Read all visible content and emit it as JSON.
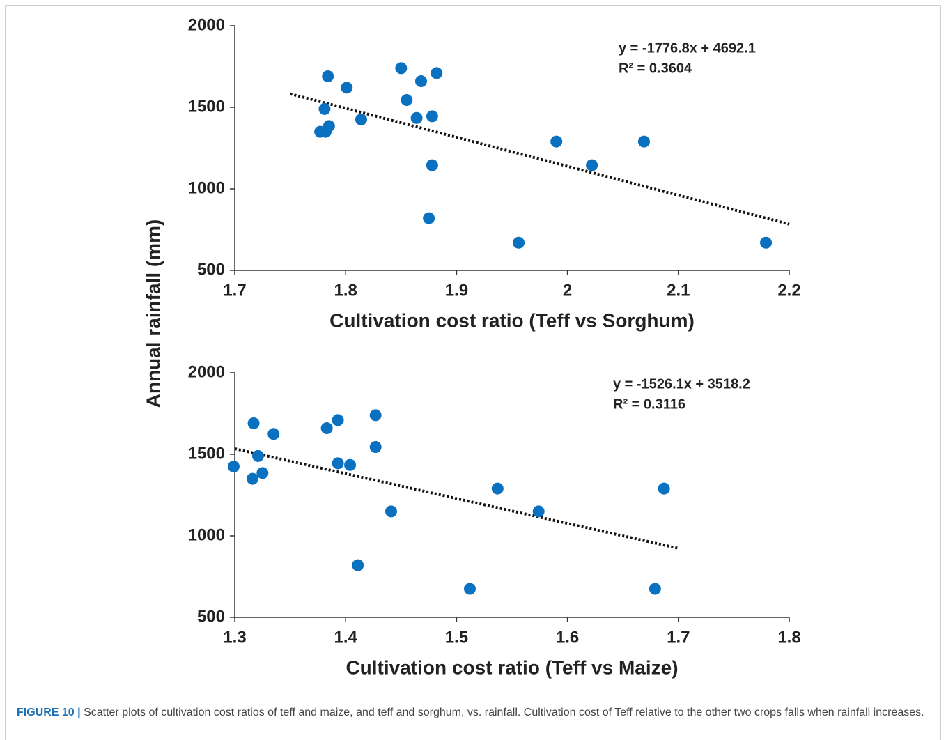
{
  "chart_data": [
    {
      "type": "scatter",
      "xlabel": "Cultivation cost ratio (Teff vs Sorghum)",
      "ylabel": "Annual rainfall (mm)",
      "series": [
        {
          "color": "#0a70c0",
          "x": [
            1.784,
            1.801,
            1.781,
            1.785,
            1.777,
            1.782,
            1.814,
            1.85,
            1.868,
            1.882,
            1.855,
            1.864,
            1.878,
            1.878,
            1.875,
            1.956,
            1.99,
            2.022,
            2.069,
            2.179
          ],
          "values": [
            1690,
            1620,
            1490,
            1385,
            1350,
            1350,
            1425,
            1740,
            1660,
            1710,
            1545,
            1435,
            1445,
            1145,
            820,
            670,
            1290,
            1145,
            1290,
            670
          ]
        }
      ],
      "xlim": [
        1.7,
        2.2
      ],
      "xticks": [
        1.7,
        1.8,
        1.9,
        2,
        2.1,
        2.2
      ],
      "ylim": [
        500,
        2000
      ],
      "yticks": [
        500,
        1000,
        1500,
        2000
      ],
      "equation": "y = -1776.8x + 4692.1",
      "r_squared": "R² = 0.3604",
      "trendline": {
        "slope": -1776.8,
        "intercept": 4692.1,
        "xlim": [
          1.75,
          2.2
        ]
      }
    },
    {
      "type": "scatter",
      "xlabel": "Cultivation cost ratio (Teff vs Maize)",
      "series": [
        {
          "color": "#0a70c0",
          "x": [
            1.317,
            1.335,
            1.321,
            1.299,
            1.316,
            1.325,
            1.383,
            1.393,
            1.427,
            1.427,
            1.393,
            1.404,
            1.441,
            1.411,
            1.512,
            1.537,
            1.574,
            1.687,
            1.679
          ],
          "values": [
            1690,
            1625,
            1490,
            1425,
            1350,
            1385,
            1660,
            1710,
            1740,
            1545,
            1445,
            1435,
            1150,
            820,
            675,
            1290,
            1150,
            1290,
            675
          ]
        }
      ],
      "xlim": [
        1.3,
        1.8
      ],
      "xticks": [
        1.3,
        1.4,
        1.5,
        1.6,
        1.7,
        1.8
      ],
      "ylim": [
        500,
        2000
      ],
      "yticks": [
        500,
        1000,
        1500,
        2000
      ],
      "equation": "y = -1526.1x + 3518.2",
      "r_squared": "R² = 0.3116",
      "trendline": {
        "slope": -1526.1,
        "intercept": 3518.2,
        "xlim": [
          1.3,
          1.7
        ]
      }
    }
  ],
  "caption": {
    "label": "FIGURE 10 |",
    "text": "Scatter plots of cultivation cost ratios of teff and maize, and teff and sorghum, vs. rainfall. Cultivation cost of Teff relative to the other two crops falls when rainfall increases."
  }
}
